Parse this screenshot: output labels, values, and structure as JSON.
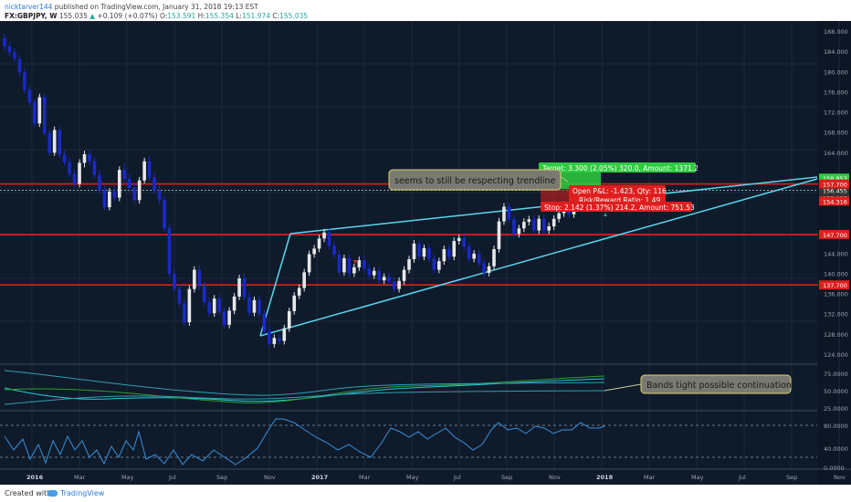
{
  "header": {
    "author": "nicktarver144",
    "published": "published on TradingView.com, January 31, 2018 19:13 EST",
    "symbol": "FX:GBPJPY, W",
    "last": "155.035",
    "change_arrow": "▲",
    "change": "+0.109 (+0.07%)",
    "open_label": "O:",
    "open": "153.591",
    "high_label": "H:",
    "high": "155.354",
    "low_label": "L:",
    "low": "151.974",
    "close_label": "C:",
    "close": "155.035"
  },
  "footer": {
    "created": "Created with",
    "brand": "TradingView"
  },
  "colors": {
    "background": "#0f1b2b",
    "bull": "#e8e8e8",
    "bear": "#1a29c8",
    "level": "#e01e1e",
    "trend": "#5ad7ec"
  },
  "chart_data": {
    "type": "candlestick",
    "price_axis": {
      "min": 122,
      "max": 190,
      "ticks": [
        "188.000",
        "184.000",
        "180.000",
        "176.000",
        "172.000",
        "168.000",
        "164.000",
        "144.000",
        "140.000",
        "136.000",
        "132.000",
        "128.000",
        "124.000"
      ]
    },
    "time_axis": {
      "ticks": [
        "2016",
        "Mar",
        "May",
        "Jul",
        "Sep",
        "Nov",
        "2017",
        "Mar",
        "May",
        "Jul",
        "Sep",
        "Nov",
        "2018",
        "Mar",
        "May",
        "Jul",
        "Sep",
        "Nov"
      ]
    },
    "ohlc": [
      [
        186.6,
        187.5,
        184.2,
        185.0
      ],
      [
        185.0,
        185.8,
        183.0,
        183.8
      ],
      [
        183.8,
        184.6,
        181.9,
        182.5
      ],
      [
        182.5,
        183.2,
        179.1,
        179.8
      ],
      [
        179.8,
        180.6,
        175.7,
        176.4
      ],
      [
        176.4,
        177.1,
        173.2,
        173.9
      ],
      [
        173.9,
        174.6,
        169.0,
        169.7
      ],
      [
        169.7,
        175.6,
        169.0,
        174.9
      ],
      [
        174.9,
        175.6,
        167.1,
        167.8
      ],
      [
        167.8,
        168.5,
        163.3,
        163.9
      ],
      [
        163.9,
        169.1,
        163.3,
        168.4
      ],
      [
        168.4,
        169.1,
        162.9,
        163.5
      ],
      [
        163.5,
        164.4,
        161.3,
        162.0
      ],
      [
        162.0,
        162.9,
        159.0,
        159.7
      ],
      [
        159.7,
        160.6,
        157.0,
        157.7
      ],
      [
        157.7,
        162.6,
        157.0,
        161.9
      ],
      [
        161.9,
        164.3,
        161.0,
        163.6
      ],
      [
        163.6,
        164.5,
        161.4,
        162.2
      ],
      [
        162.2,
        163.0,
        158.8,
        159.5
      ],
      [
        159.5,
        160.4,
        155.8,
        156.5
      ],
      [
        156.5,
        157.4,
        152.5,
        153.1
      ],
      [
        153.1,
        156.9,
        152.5,
        156.2
      ],
      [
        156.2,
        157.3,
        154.3,
        155.0
      ],
      [
        155.0,
        161.2,
        154.3,
        160.5
      ],
      [
        160.5,
        161.7,
        158.0,
        158.7
      ],
      [
        158.7,
        159.6,
        156.2,
        156.9
      ],
      [
        156.9,
        157.8,
        153.8,
        154.5
      ],
      [
        154.5,
        159.1,
        153.8,
        158.4
      ],
      [
        158.4,
        162.9,
        157.8,
        162.2
      ],
      [
        162.2,
        163.2,
        158.3,
        159.0
      ],
      [
        159.0,
        159.9,
        155.8,
        156.5
      ],
      [
        156.5,
        157.5,
        153.8,
        154.5
      ],
      [
        154.5,
        155.3,
        148.2,
        148.9
      ],
      [
        148.9,
        149.8,
        139.2,
        139.9
      ],
      [
        139.9,
        140.8,
        136.2,
        136.9
      ],
      [
        136.9,
        137.8,
        133.3,
        134.0
      ],
      [
        134.0,
        134.9,
        129.6,
        130.3
      ],
      [
        130.3,
        137.6,
        129.6,
        136.9
      ],
      [
        136.9,
        141.4,
        136.2,
        140.7
      ],
      [
        140.7,
        141.6,
        136.7,
        137.4
      ],
      [
        137.4,
        138.3,
        133.6,
        134.3
      ],
      [
        134.3,
        135.2,
        131.4,
        132.1
      ],
      [
        132.1,
        135.7,
        131.4,
        135.0
      ],
      [
        135.0,
        135.9,
        131.7,
        132.4
      ],
      [
        132.4,
        133.3,
        129.1,
        129.8
      ],
      [
        129.8,
        133.3,
        129.1,
        132.6
      ],
      [
        132.6,
        136.1,
        131.9,
        135.4
      ],
      [
        135.4,
        139.7,
        134.7,
        139.0
      ],
      [
        139.0,
        139.9,
        134.6,
        135.3
      ],
      [
        135.3,
        136.2,
        131.5,
        132.2
      ],
      [
        132.2,
        135.4,
        131.5,
        134.7
      ],
      [
        134.7,
        135.6,
        131.3,
        132.0
      ],
      [
        132.0,
        132.8,
        127.9,
        128.6
      ],
      [
        128.6,
        129.5,
        125.3,
        126.0
      ],
      [
        126.0,
        127.9,
        125.3,
        127.2
      ],
      [
        127.2,
        128.0,
        125.9,
        126.6
      ],
      [
        126.6,
        129.8,
        125.9,
        129.1
      ],
      [
        129.1,
        133.2,
        128.4,
        132.5
      ],
      [
        132.5,
        136.3,
        131.8,
        135.6
      ],
      [
        135.6,
        137.8,
        134.9,
        137.1
      ],
      [
        137.1,
        140.9,
        136.4,
        140.2
      ],
      [
        140.2,
        144.5,
        139.5,
        143.8
      ],
      [
        143.8,
        145.6,
        143.1,
        144.9
      ],
      [
        144.9,
        147.6,
        144.2,
        146.9
      ],
      [
        146.9,
        148.8,
        146.2,
        148.1
      ],
      [
        148.1,
        148.9,
        144.8,
        145.5
      ],
      [
        145.5,
        146.3,
        143.0,
        143.7
      ],
      [
        143.7,
        144.6,
        139.5,
        140.2
      ],
      [
        140.2,
        143.7,
        139.5,
        143.0
      ],
      [
        143.0,
        143.8,
        139.3,
        140.0
      ],
      [
        140.0,
        141.9,
        139.3,
        141.2
      ],
      [
        141.2,
        143.3,
        140.5,
        142.6
      ],
      [
        142.6,
        143.5,
        140.2,
        140.9
      ],
      [
        140.9,
        141.8,
        138.9,
        139.6
      ],
      [
        139.6,
        141.2,
        138.9,
        140.5
      ],
      [
        140.5,
        141.3,
        137.9,
        138.6
      ],
      [
        138.6,
        140.0,
        137.9,
        139.3
      ],
      [
        139.3,
        140.1,
        137.7,
        138.4
      ],
      [
        138.4,
        139.2,
        136.2,
        136.9
      ],
      [
        136.9,
        139.2,
        136.2,
        138.5
      ],
      [
        138.5,
        141.4,
        137.8,
        140.7
      ],
      [
        140.7,
        143.5,
        140.0,
        142.8
      ],
      [
        142.8,
        146.6,
        142.1,
        145.9
      ],
      [
        145.9,
        146.7,
        142.6,
        143.3
      ],
      [
        143.3,
        145.7,
        142.6,
        145.0
      ],
      [
        145.0,
        145.8,
        142.2,
        142.9
      ],
      [
        142.9,
        143.8,
        140.0,
        140.7
      ],
      [
        140.7,
        143.1,
        140.0,
        142.4
      ],
      [
        142.4,
        145.5,
        141.7,
        144.8
      ],
      [
        144.8,
        145.6,
        142.6,
        143.3
      ],
      [
        143.3,
        147.1,
        142.6,
        146.4
      ],
      [
        146.4,
        147.7,
        145.7,
        147.0
      ],
      [
        147.0,
        147.9,
        144.6,
        145.3
      ],
      [
        145.3,
        146.1,
        142.2,
        142.9
      ],
      [
        142.9,
        144.6,
        142.2,
        143.9
      ],
      [
        143.9,
        144.7,
        141.3,
        142.0
      ],
      [
        142.0,
        142.8,
        139.4,
        140.1
      ],
      [
        140.1,
        142.1,
        139.4,
        141.4
      ],
      [
        141.4,
        145.5,
        140.7,
        144.8
      ],
      [
        144.8,
        151.0,
        144.1,
        150.3
      ],
      [
        150.3,
        153.9,
        149.6,
        153.2
      ],
      [
        153.2,
        154.0,
        150.0,
        150.7
      ],
      [
        150.7,
        151.6,
        147.1,
        147.8
      ],
      [
        147.8,
        149.6,
        147.1,
        148.9
      ],
      [
        148.9,
        150.9,
        148.2,
        150.2
      ],
      [
        150.2,
        151.4,
        149.5,
        150.7
      ],
      [
        150.7,
        151.5,
        147.8,
        148.5
      ],
      [
        148.5,
        151.5,
        147.8,
        150.8
      ],
      [
        150.8,
        151.6,
        147.8,
        148.5
      ],
      [
        148.5,
        150.0,
        147.8,
        149.3
      ],
      [
        149.3,
        151.5,
        148.6,
        150.8
      ],
      [
        150.8,
        152.6,
        150.1,
        151.9
      ],
      [
        151.9,
        154.3,
        151.2,
        153.6
      ],
      [
        153.6,
        154.4,
        151.0,
        151.7
      ],
      [
        151.7,
        153.7,
        151.0,
        153.0
      ],
      [
        153.0,
        155.4,
        152.3,
        154.7
      ]
    ],
    "levels": [
      {
        "price": 157.7,
        "label": "157.700",
        "color": "#e01e1e"
      },
      {
        "price": 147.7,
        "label": "147.700",
        "color": "#e01e1e"
      },
      {
        "price": 137.7,
        "label": "137.700",
        "color": "#e01e1e"
      }
    ],
    "price_labels": [
      {
        "price": 158.853,
        "label": "158.853",
        "color": "#2ecc40"
      },
      {
        "price": 156.455,
        "label": "156.455",
        "color": "#333333"
      },
      {
        "price": 155.035,
        "label": "155.035",
        "color": "#333333"
      },
      {
        "price": 154.316,
        "label": "154.316",
        "color": "#e01e1e"
      }
    ],
    "annotations": {
      "trend_note": "seems to still be respecting trendline",
      "bands_note": "Bands tight possible continuation",
      "target": "Target: 3.300 (2.05%) 320.0, Amount: 1371.2",
      "open_pl": "Open P&L: -1.423, Qty: 116",
      "risk_reward": "Risk/Reward Ratio: 1.49",
      "stop": "Stop: 2.142 (1.37%) 214.2, Amount: 751.53"
    },
    "osc1_axis": {
      "ticks": [
        "75.0000",
        "50.0000",
        "25.0000"
      ]
    },
    "osc2_axis": {
      "ticks": [
        "80.0000",
        "40.0000",
        "0.0000"
      ]
    }
  }
}
